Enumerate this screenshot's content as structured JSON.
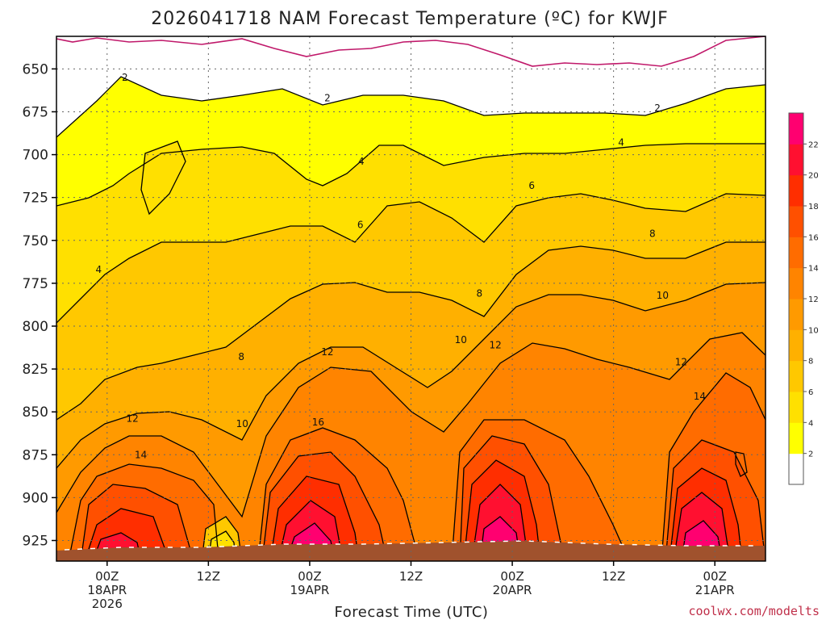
{
  "chart_data": {
    "type": "contour-filled",
    "title": "2026041718 NAM Forecast Temperature (ºC) for KWJF",
    "xlabel": "Forecast Time (UTC)",
    "ylabel": "",
    "x_ticks": [
      {
        "lines": [
          "00Z",
          "18APR",
          "2026"
        ],
        "hour": 6
      },
      {
        "lines": [
          "12Z"
        ],
        "hour": 18
      },
      {
        "lines": [
          "00Z",
          "19APR"
        ],
        "hour": 30
      },
      {
        "lines": [
          "12Z"
        ],
        "hour": 42
      },
      {
        "lines": [
          "00Z",
          "20APR"
        ],
        "hour": 54
      },
      {
        "lines": [
          "12Z"
        ],
        "hour": 66
      },
      {
        "lines": [
          "00Z",
          "21APR"
        ],
        "hour": 78
      }
    ],
    "xlim_hours": [
      0,
      84
    ],
    "y_ticks": [
      650,
      675,
      700,
      725,
      750,
      775,
      800,
      825,
      850,
      875,
      900,
      925
    ],
    "ylim_hPa": [
      631,
      937
    ],
    "colorbar_ticks": [
      "2",
      "4",
      "6",
      "8",
      "10",
      "12",
      "14",
      "16",
      "18",
      "20",
      "22"
    ],
    "colorbar_colors": [
      "#ffffff",
      "#ffff00",
      "#ffe000",
      "#ffc800",
      "#ffb000",
      "#ff9a00",
      "#ff8400",
      "#ff6c00",
      "#ff5000",
      "#ff2e00",
      "#ff1030",
      "#ff0070"
    ],
    "contour_labels": [
      {
        "text": "2",
        "hour": 8.1,
        "p": 655
      },
      {
        "text": "2",
        "hour": 32.1,
        "p": 667
      },
      {
        "text": "2",
        "hour": 71.2,
        "p": 673
      },
      {
        "text": "4",
        "hour": 66.9,
        "p": 693
      },
      {
        "text": "4",
        "hour": 36.1,
        "p": 704
      },
      {
        "text": "6",
        "hour": 56.3,
        "p": 718
      },
      {
        "text": "6",
        "hour": 36.0,
        "p": 741
      },
      {
        "text": "8",
        "hour": 70.6,
        "p": 746
      },
      {
        "text": "4",
        "hour": 5.0,
        "p": 767
      },
      {
        "text": "8",
        "hour": 50.1,
        "p": 781
      },
      {
        "text": "10",
        "hour": 71.8,
        "p": 782
      },
      {
        "text": "10",
        "hour": 47.9,
        "p": 808
      },
      {
        "text": "12",
        "hour": 32.1,
        "p": 815
      },
      {
        "text": "12",
        "hour": 52.0,
        "p": 811
      },
      {
        "text": "8",
        "hour": 21.9,
        "p": 818
      },
      {
        "text": "12",
        "hour": 74.0,
        "p": 821
      },
      {
        "text": "14",
        "hour": 76.2,
        "p": 841
      },
      {
        "text": "12",
        "hour": 9.0,
        "p": 854
      },
      {
        "text": "10",
        "hour": 22.0,
        "p": 857
      },
      {
        "text": "16",
        "hour": 31.0,
        "p": 856
      },
      {
        "text": "14",
        "hour": 10.0,
        "p": 875
      }
    ],
    "credit": "coolwx.com/modelts"
  }
}
